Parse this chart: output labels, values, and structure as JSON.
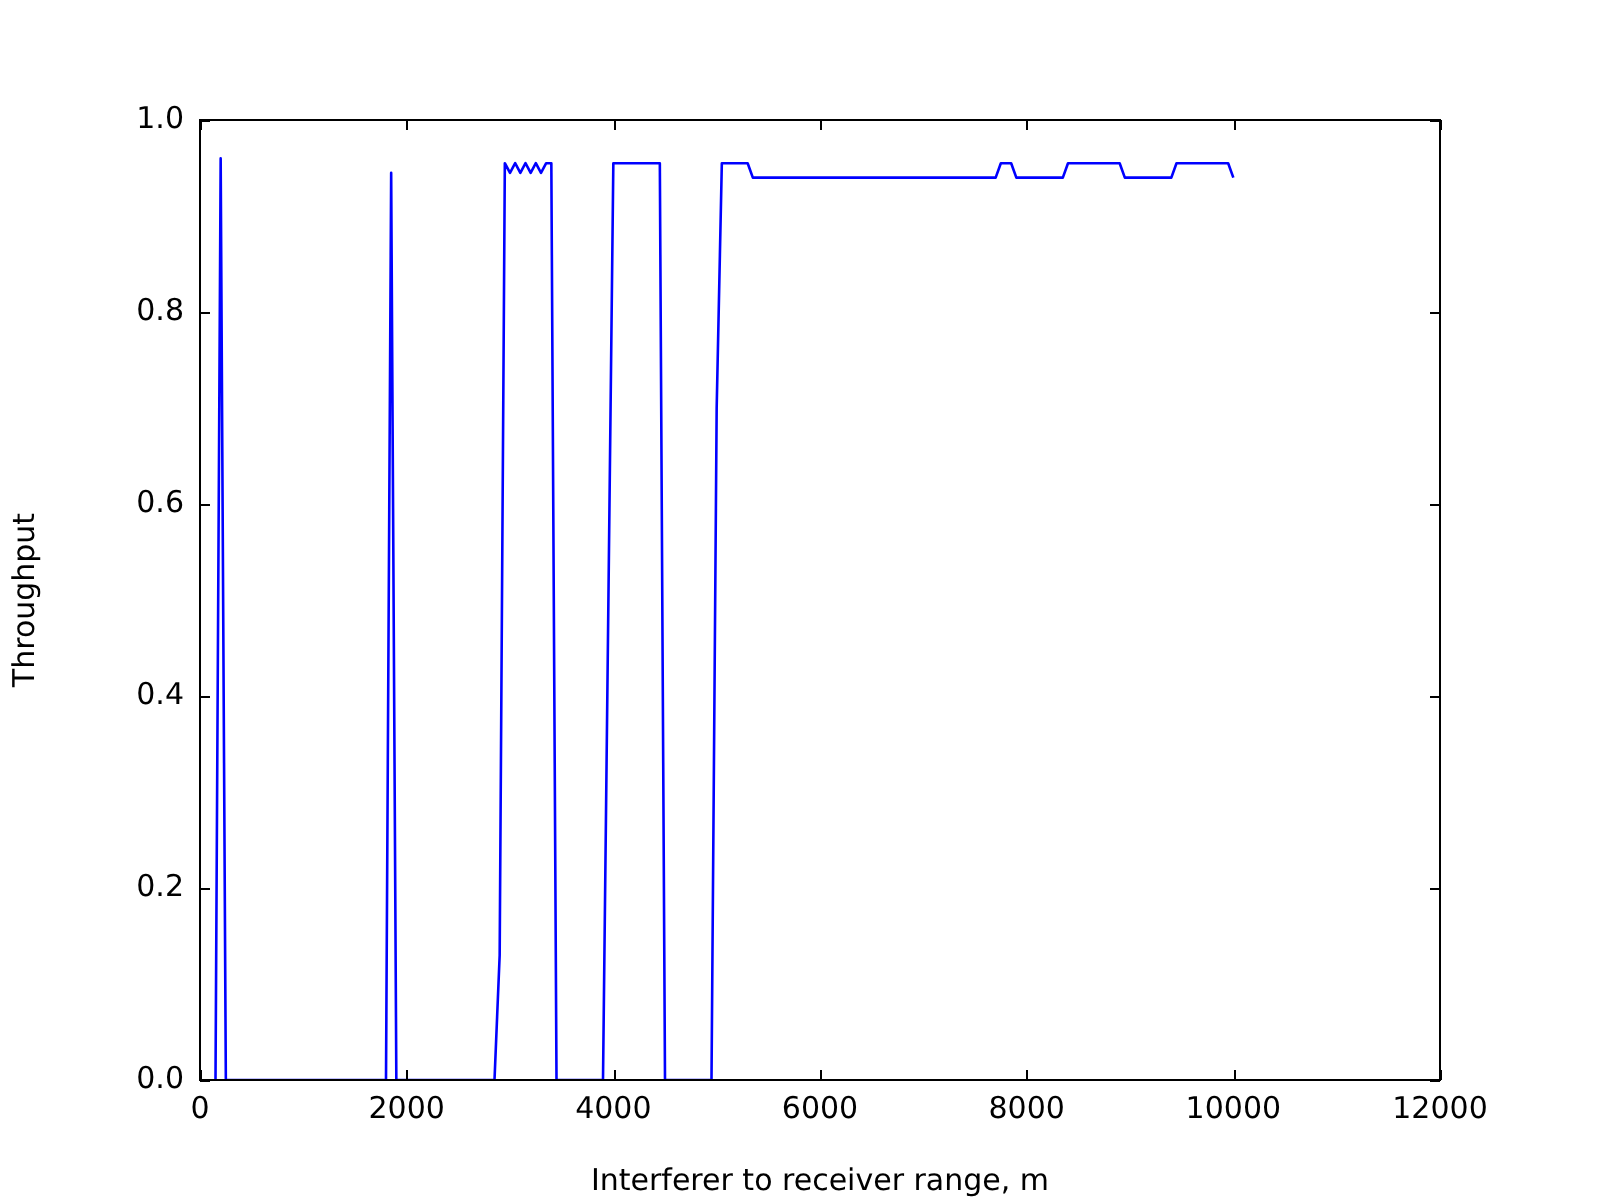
{
  "chart_data": {
    "type": "line",
    "xlabel": "Interferer to receiver range, m",
    "ylabel": "Throughput",
    "x": [
      150,
      200,
      250,
      1800,
      1850,
      1900,
      2850,
      2900,
      2950,
      3000,
      3050,
      3100,
      3150,
      3200,
      3250,
      3300,
      3350,
      3400,
      3450,
      3900,
      4000,
      4450,
      4500,
      4950,
      5000,
      5050,
      5300,
      5350,
      7700,
      7750,
      7850,
      7900,
      8350,
      8400,
      8900,
      8950,
      9400,
      9450,
      9950,
      10000
    ],
    "series": [
      {
        "color": "#0000ff",
        "values": [
          0,
          0.96,
          0,
          0,
          0.945,
          0,
          0,
          0.13,
          0.955,
          0.945,
          0.955,
          0.945,
          0.955,
          0.945,
          0.955,
          0.945,
          0.955,
          0.955,
          0,
          0,
          0.955,
          0.955,
          0,
          0,
          0.7,
          0.955,
          0.955,
          0.94,
          0.94,
          0.955,
          0.955,
          0.94,
          0.94,
          0.955,
          0.955,
          0.94,
          0.94,
          0.955,
          0.955,
          0.94
        ]
      }
    ],
    "xlim": [
      0,
      12000
    ],
    "xticks": [
      0,
      2000,
      4000,
      6000,
      8000,
      10000,
      12000
    ],
    "ylim": [
      0,
      1
    ],
    "yticks": [
      {
        "value": 0,
        "label": "0.0"
      },
      {
        "value": 0.2,
        "label": "0.2"
      },
      {
        "value": 0.4,
        "label": "0.4"
      },
      {
        "value": 0.6,
        "label": "0.6"
      },
      {
        "value": 0.8,
        "label": "0.8"
      },
      {
        "value": 1,
        "label": "1.0"
      }
    ],
    "grid": false,
    "legend": false,
    "marker": "none",
    "line_style": "solid"
  }
}
